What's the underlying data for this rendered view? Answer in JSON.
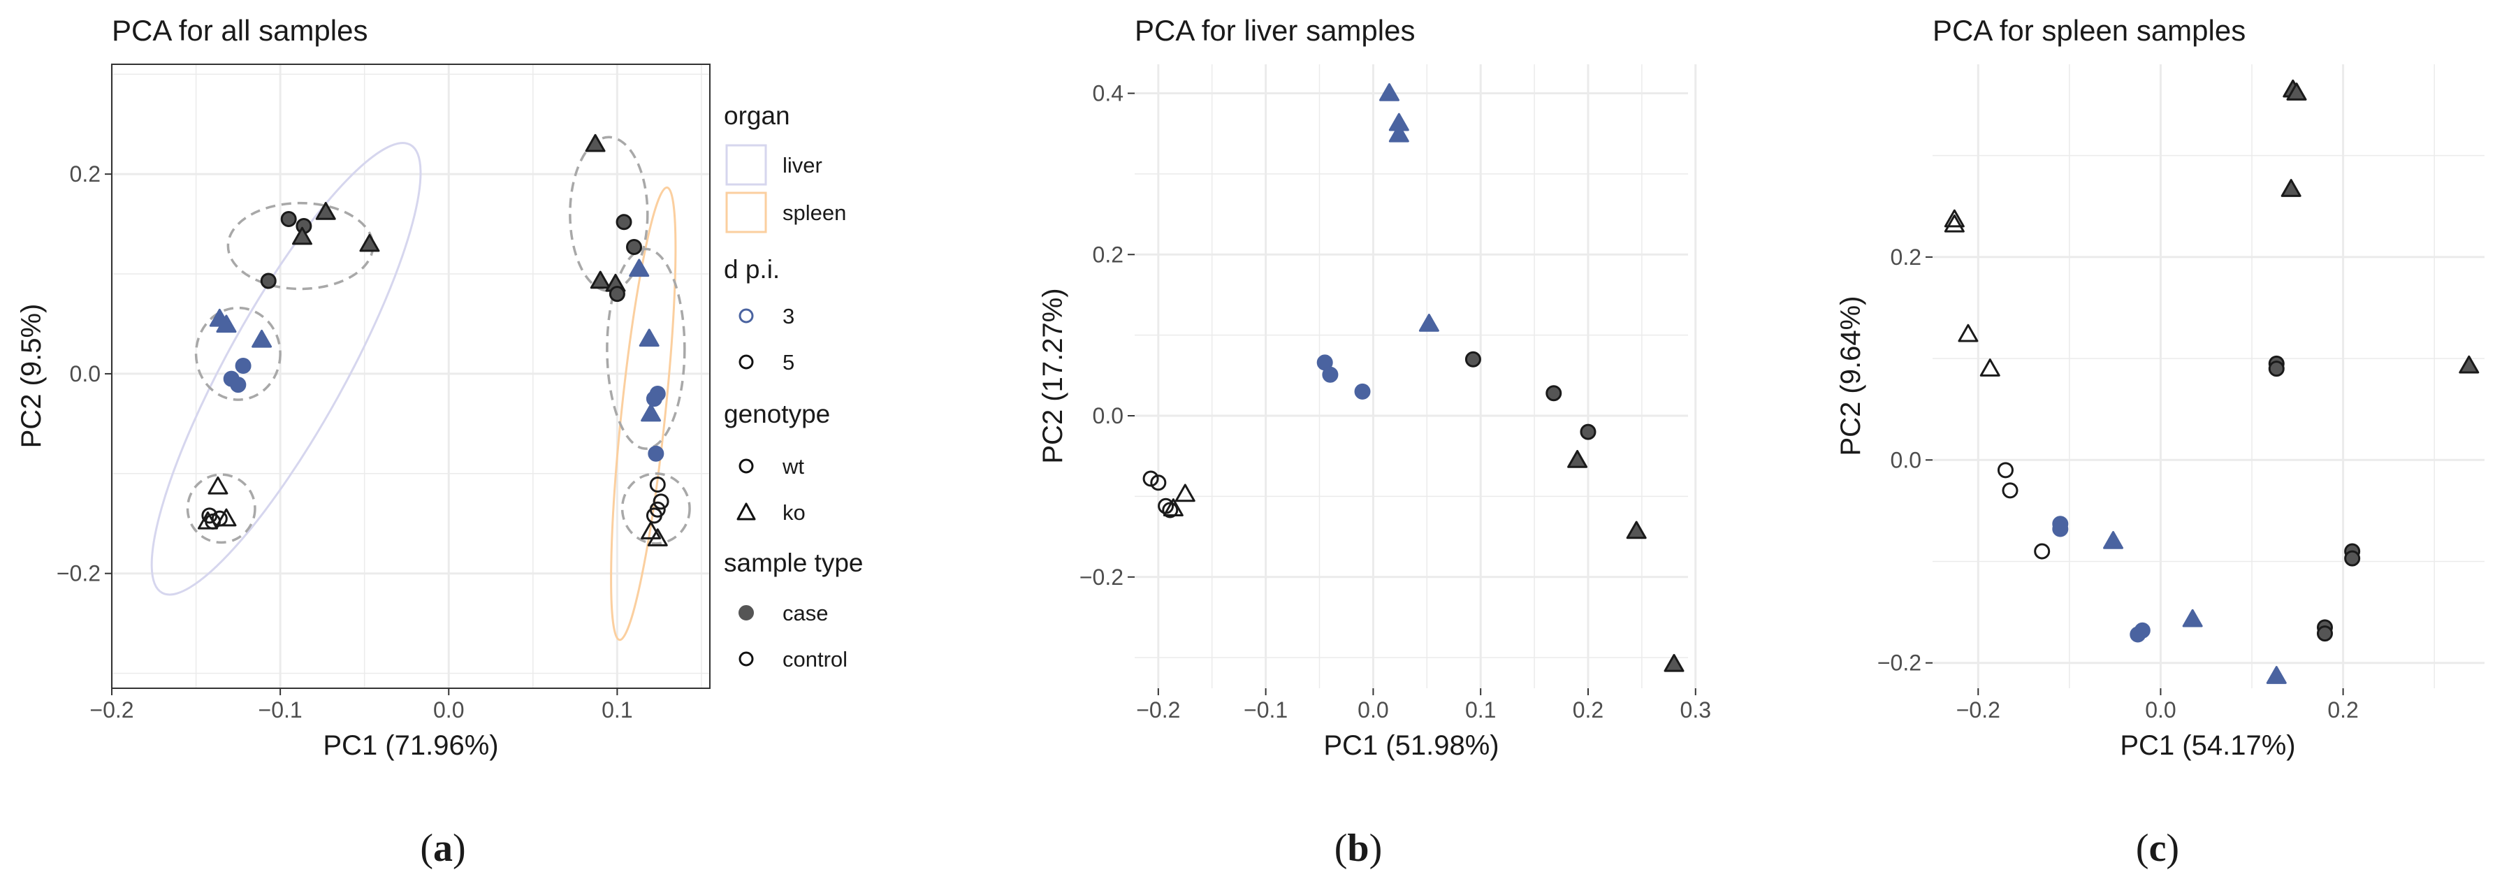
{
  "colors": {
    "dpi3": "#4a63a0",
    "dpi5": "#555555",
    "liver": "#d6d6ee",
    "spleen": "#fbcf9f",
    "grid": "#ebebeb",
    "cluster": "#a8a8a8"
  },
  "chart_data": [
    {
      "panel": "a",
      "type": "scatter",
      "title": "PCA for all samples",
      "xlabel": "PC1 (71.96%)",
      "ylabel": "PC2 (9.5%)",
      "xlim": [
        -0.2,
        0.155
      ],
      "ylim": [
        -0.315,
        0.31
      ],
      "xticks": [
        -0.2,
        -0.1,
        0.0,
        0.1
      ],
      "xtick_labels": [
        "−0.2",
        "−0.1",
        "0.0",
        "0.1"
      ],
      "yticks": [
        -0.2,
        0.0,
        0.2
      ],
      "ytick_labels": [
        "−0.2",
        "0.0",
        "0.2"
      ],
      "caption": "a",
      "legend": {
        "organ_title": "organ",
        "organ_items": [
          {
            "label": "liver",
            "key": "liver"
          },
          {
            "label": "spleen",
            "key": "spleen"
          }
        ],
        "dpi_title": "d p.i.",
        "dpi_items": [
          {
            "label": "3",
            "key": "dpi3"
          },
          {
            "label": "5",
            "key": "dpi5"
          }
        ],
        "genotype_title": "genotype",
        "genotype_items": [
          {
            "label": "wt",
            "shape": "circle"
          },
          {
            "label": "ko",
            "shape": "triangle"
          }
        ],
        "sample_title": "sample type",
        "sample_items": [
          {
            "label": "case",
            "filled": true
          },
          {
            "label": "control",
            "filled": false
          }
        ]
      },
      "organ_ellipses": [
        {
          "organ": "liver",
          "cx": -0.0965,
          "cy": 0.005,
          "rx": 0.152,
          "ry": 0.035,
          "angle_deg": 61
        },
        {
          "organ": "spleen",
          "cx": 0.1155,
          "cy": -0.04,
          "rx": 0.135,
          "ry": 0.013,
          "angle_deg": 84
        }
      ],
      "cluster_ellipses": [
        {
          "cx": -0.088,
          "cy": 0.128,
          "rx": 0.043,
          "ry": 0.043
        },
        {
          "cx": -0.125,
          "cy": 0.02,
          "rx": 0.025,
          "ry": 0.046
        },
        {
          "cx": -0.135,
          "cy": -0.135,
          "rx": 0.02,
          "ry": 0.034
        },
        {
          "cx": 0.095,
          "cy": 0.16,
          "rx": 0.023,
          "ry": 0.077
        },
        {
          "cx": 0.117,
          "cy": 0.025,
          "rx": 0.023,
          "ry": 0.1
        },
        {
          "cx": 0.123,
          "cy": -0.135,
          "rx": 0.02,
          "ry": 0.035
        }
      ],
      "points": [
        {
          "x": -0.095,
          "y": 0.155,
          "shape": "circle",
          "dpi": 5,
          "filled": true
        },
        {
          "x": -0.086,
          "y": 0.148,
          "shape": "circle",
          "dpi": 5,
          "filled": true
        },
        {
          "x": -0.073,
          "y": 0.162,
          "shape": "triangle",
          "dpi": 5,
          "filled": true
        },
        {
          "x": -0.087,
          "y": 0.137,
          "shape": "triangle",
          "dpi": 5,
          "filled": true
        },
        {
          "x": -0.047,
          "y": 0.13,
          "shape": "triangle",
          "dpi": 5,
          "filled": true
        },
        {
          "x": -0.107,
          "y": 0.093,
          "shape": "circle",
          "dpi": 5,
          "filled": true
        },
        {
          "x": -0.136,
          "y": 0.055,
          "shape": "triangle",
          "dpi": 3,
          "filled": true
        },
        {
          "x": -0.132,
          "y": 0.049,
          "shape": "triangle",
          "dpi": 3,
          "filled": true
        },
        {
          "x": -0.111,
          "y": 0.034,
          "shape": "triangle",
          "dpi": 3,
          "filled": true
        },
        {
          "x": -0.122,
          "y": 0.008,
          "shape": "circle",
          "dpi": 3,
          "filled": true
        },
        {
          "x": -0.129,
          "y": -0.005,
          "shape": "circle",
          "dpi": 3,
          "filled": true
        },
        {
          "x": -0.125,
          "y": -0.011,
          "shape": "circle",
          "dpi": 3,
          "filled": true
        },
        {
          "x": -0.137,
          "y": -0.113,
          "shape": "triangle",
          "dpi": 5,
          "filled": false
        },
        {
          "x": -0.142,
          "y": -0.142,
          "shape": "circle",
          "dpi": 5,
          "filled": false
        },
        {
          "x": -0.14,
          "y": -0.148,
          "shape": "circle",
          "dpi": 5,
          "filled": false
        },
        {
          "x": -0.136,
          "y": -0.145,
          "shape": "circle",
          "dpi": 5,
          "filled": false
        },
        {
          "x": -0.132,
          "y": -0.145,
          "shape": "triangle",
          "dpi": 5,
          "filled": false
        },
        {
          "x": -0.143,
          "y": -0.148,
          "shape": "triangle",
          "dpi": 5,
          "filled": false
        },
        {
          "x": 0.087,
          "y": 0.23,
          "shape": "triangle",
          "dpi": 5,
          "filled": true
        },
        {
          "x": 0.104,
          "y": 0.152,
          "shape": "circle",
          "dpi": 5,
          "filled": true
        },
        {
          "x": 0.11,
          "y": 0.127,
          "shape": "circle",
          "dpi": 5,
          "filled": true
        },
        {
          "x": 0.09,
          "y": 0.093,
          "shape": "triangle",
          "dpi": 5,
          "filled": true
        },
        {
          "x": 0.099,
          "y": 0.09,
          "shape": "triangle",
          "dpi": 5,
          "filled": true
        },
        {
          "x": 0.1,
          "y": 0.08,
          "shape": "circle",
          "dpi": 5,
          "filled": true
        },
        {
          "x": 0.113,
          "y": 0.105,
          "shape": "triangle",
          "dpi": 3,
          "filled": true
        },
        {
          "x": 0.119,
          "y": 0.035,
          "shape": "triangle",
          "dpi": 3,
          "filled": true
        },
        {
          "x": 0.124,
          "y": -0.02,
          "shape": "circle",
          "dpi": 3,
          "filled": true
        },
        {
          "x": 0.122,
          "y": -0.025,
          "shape": "circle",
          "dpi": 3,
          "filled": true
        },
        {
          "x": 0.12,
          "y": -0.04,
          "shape": "triangle",
          "dpi": 3,
          "filled": true
        },
        {
          "x": 0.123,
          "y": -0.08,
          "shape": "circle",
          "dpi": 3,
          "filled": true
        },
        {
          "x": 0.124,
          "y": -0.111,
          "shape": "circle",
          "dpi": 5,
          "filled": false
        },
        {
          "x": 0.126,
          "y": -0.128,
          "shape": "circle",
          "dpi": 5,
          "filled": false
        },
        {
          "x": 0.124,
          "y": -0.136,
          "shape": "circle",
          "dpi": 5,
          "filled": false
        },
        {
          "x": 0.122,
          "y": -0.142,
          "shape": "circle",
          "dpi": 5,
          "filled": false
        },
        {
          "x": 0.12,
          "y": -0.158,
          "shape": "triangle",
          "dpi": 5,
          "filled": false
        },
        {
          "x": 0.124,
          "y": -0.165,
          "shape": "triangle",
          "dpi": 5,
          "filled": false
        }
      ]
    },
    {
      "panel": "b",
      "type": "scatter",
      "title": "PCA for liver samples",
      "xlabel": "PC1 (51.98%)",
      "ylabel": "PC2 (17.27%)",
      "xlim": [
        -0.222,
        0.293
      ],
      "ylim": [
        -0.338,
        0.436
      ],
      "xticks": [
        -0.2,
        -0.1,
        0.0,
        0.1,
        0.2,
        0.3
      ],
      "xtick_labels": [
        "−0.2",
        "−0.1",
        "0.0",
        "0.1",
        "0.2",
        "0.3"
      ],
      "yticks": [
        -0.2,
        0.0,
        0.2,
        0.4
      ],
      "ytick_labels": [
        "−0.2",
        "0.0",
        "0.2",
        "0.4"
      ],
      "caption": "b",
      "points": [
        {
          "x": 0.015,
          "y": 0.4,
          "shape": "triangle",
          "dpi": 3,
          "filled": true
        },
        {
          "x": 0.024,
          "y": 0.363,
          "shape": "triangle",
          "dpi": 3,
          "filled": true
        },
        {
          "x": 0.024,
          "y": 0.349,
          "shape": "triangle",
          "dpi": 3,
          "filled": true
        },
        {
          "x": 0.052,
          "y": 0.114,
          "shape": "triangle",
          "dpi": 3,
          "filled": true
        },
        {
          "x": -0.045,
          "y": 0.066,
          "shape": "circle",
          "dpi": 3,
          "filled": true
        },
        {
          "x": -0.04,
          "y": 0.051,
          "shape": "circle",
          "dpi": 3,
          "filled": true
        },
        {
          "x": -0.01,
          "y": 0.03,
          "shape": "circle",
          "dpi": 3,
          "filled": true
        },
        {
          "x": 0.093,
          "y": 0.07,
          "shape": "circle",
          "dpi": 5,
          "filled": true
        },
        {
          "x": 0.168,
          "y": 0.028,
          "shape": "circle",
          "dpi": 5,
          "filled": true
        },
        {
          "x": 0.2,
          "y": -0.02,
          "shape": "circle",
          "dpi": 5,
          "filled": true
        },
        {
          "x": 0.19,
          "y": -0.055,
          "shape": "triangle",
          "dpi": 5,
          "filled": true
        },
        {
          "x": 0.245,
          "y": -0.143,
          "shape": "triangle",
          "dpi": 5,
          "filled": true
        },
        {
          "x": 0.28,
          "y": -0.308,
          "shape": "triangle",
          "dpi": 5,
          "filled": true
        },
        {
          "x": -0.207,
          "y": -0.078,
          "shape": "circle",
          "dpi": 5,
          "filled": false
        },
        {
          "x": -0.2,
          "y": -0.083,
          "shape": "circle",
          "dpi": 5,
          "filled": false
        },
        {
          "x": -0.193,
          "y": -0.112,
          "shape": "circle",
          "dpi": 5,
          "filled": false
        },
        {
          "x": -0.189,
          "y": -0.117,
          "shape": "circle",
          "dpi": 5,
          "filled": false
        },
        {
          "x": -0.175,
          "y": -0.097,
          "shape": "triangle",
          "dpi": 5,
          "filled": false
        },
        {
          "x": -0.186,
          "y": -0.115,
          "shape": "triangle",
          "dpi": 5,
          "filled": false
        }
      ]
    },
    {
      "panel": "c",
      "type": "scatter",
      "title": "PCA for spleen samples",
      "xlabel": "PC1 (54.17%)",
      "ylabel": "PC2 (9.64%)",
      "xlim": [
        -0.25,
        0.355
      ],
      "ylim": [
        -0.225,
        0.39
      ],
      "xticks": [
        -0.2,
        0.0,
        0.2
      ],
      "xtick_labels": [
        "−0.2",
        "0.0",
        "0.2"
      ],
      "yticks": [
        -0.2,
        0.0,
        0.2
      ],
      "ytick_labels": [
        "−0.2",
        "0.0",
        "0.2"
      ],
      "caption": "c",
      "points": [
        {
          "x": 0.145,
          "y": 0.365,
          "shape": "triangle",
          "dpi": 5,
          "filled": true
        },
        {
          "x": 0.149,
          "y": 0.362,
          "shape": "triangle",
          "dpi": 5,
          "filled": true
        },
        {
          "x": 0.143,
          "y": 0.267,
          "shape": "triangle",
          "dpi": 5,
          "filled": true
        },
        {
          "x": 0.338,
          "y": 0.093,
          "shape": "triangle",
          "dpi": 5,
          "filled": true
        },
        {
          "x": 0.127,
          "y": 0.095,
          "shape": "circle",
          "dpi": 5,
          "filled": true
        },
        {
          "x": 0.127,
          "y": 0.09,
          "shape": "circle",
          "dpi": 5,
          "filled": true
        },
        {
          "x": 0.21,
          "y": -0.09,
          "shape": "circle",
          "dpi": 5,
          "filled": true
        },
        {
          "x": 0.21,
          "y": -0.097,
          "shape": "circle",
          "dpi": 5,
          "filled": true
        },
        {
          "x": 0.18,
          "y": -0.165,
          "shape": "circle",
          "dpi": 5,
          "filled": true
        },
        {
          "x": 0.18,
          "y": -0.171,
          "shape": "circle",
          "dpi": 5,
          "filled": true
        },
        {
          "x": -0.226,
          "y": 0.237,
          "shape": "triangle",
          "dpi": 5,
          "filled": false
        },
        {
          "x": -0.226,
          "y": 0.232,
          "shape": "triangle",
          "dpi": 5,
          "filled": false
        },
        {
          "x": -0.211,
          "y": 0.124,
          "shape": "triangle",
          "dpi": 5,
          "filled": false
        },
        {
          "x": -0.187,
          "y": 0.09,
          "shape": "triangle",
          "dpi": 5,
          "filled": false
        },
        {
          "x": -0.17,
          "y": -0.01,
          "shape": "circle",
          "dpi": 5,
          "filled": false
        },
        {
          "x": -0.165,
          "y": -0.03,
          "shape": "circle",
          "dpi": 5,
          "filled": false
        },
        {
          "x": -0.13,
          "y": -0.09,
          "shape": "circle",
          "dpi": 5,
          "filled": false
        },
        {
          "x": -0.11,
          "y": -0.063,
          "shape": "circle",
          "dpi": 3,
          "filled": true
        },
        {
          "x": -0.11,
          "y": -0.068,
          "shape": "circle",
          "dpi": 3,
          "filled": true
        },
        {
          "x": -0.052,
          "y": -0.08,
          "shape": "triangle",
          "dpi": 3,
          "filled": true
        },
        {
          "x": -0.025,
          "y": -0.172,
          "shape": "circle",
          "dpi": 3,
          "filled": true
        },
        {
          "x": -0.02,
          "y": -0.168,
          "shape": "circle",
          "dpi": 3,
          "filled": true
        },
        {
          "x": 0.035,
          "y": -0.157,
          "shape": "triangle",
          "dpi": 3,
          "filled": true
        },
        {
          "x": 0.127,
          "y": -0.213,
          "shape": "triangle",
          "dpi": 3,
          "filled": true
        }
      ]
    }
  ]
}
